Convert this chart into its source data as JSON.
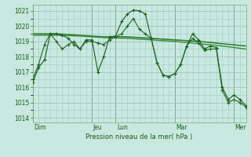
{
  "bg_color": "#c8e8e0",
  "grid_color": "#a0ccc4",
  "line_dark": "#1a5c1a",
  "line_med": "#2a7a2a",
  "ylabel": "Pression niveau de la mer( hPa )",
  "ylim": [
    1013.7,
    1021.4
  ],
  "yticks": [
    1014,
    1015,
    1016,
    1017,
    1018,
    1019,
    1020,
    1021
  ],
  "day_labels": [
    "Dim",
    "Jeu",
    "Lun",
    "Mar",
    "Mer"
  ],
  "day_positions": [
    0.0,
    0.278,
    0.389,
    0.667,
    0.944
  ],
  "series_jagged1": {
    "x": [
      0.0,
      0.028,
      0.056,
      0.083,
      0.111,
      0.139,
      0.167,
      0.194,
      0.222,
      0.25,
      0.278,
      0.306,
      0.333,
      0.361,
      0.389,
      0.417,
      0.444,
      0.472,
      0.5,
      0.528,
      0.556,
      0.583,
      0.611,
      0.639,
      0.667,
      0.694,
      0.722,
      0.75,
      0.778,
      0.806,
      0.833,
      0.861,
      0.889,
      0.917,
      0.944,
      0.972,
      1.0
    ],
    "y": [
      1016.3,
      1017.3,
      1017.8,
      1019.5,
      1019.5,
      1019.4,
      1019.2,
      1018.8,
      1018.5,
      1019.1,
      1019.1,
      1017.0,
      1018.0,
      1019.3,
      1019.35,
      1020.3,
      1020.8,
      1021.05,
      1021.0,
      1020.8,
      1019.2,
      1017.6,
      1016.8,
      1016.7,
      1016.9,
      1017.5,
      1018.7,
      1019.5,
      1019.1,
      1018.5,
      1018.7,
      1018.6,
      1016.0,
      1015.2,
      1015.5,
      1015.2,
      1014.8
    ]
  },
  "series_jagged2": {
    "x": [
      0.0,
      0.028,
      0.056,
      0.083,
      0.111,
      0.139,
      0.167,
      0.194,
      0.222,
      0.25,
      0.278,
      0.306,
      0.333,
      0.361,
      0.389,
      0.417,
      0.444,
      0.472,
      0.5,
      0.528,
      0.556,
      0.583,
      0.611,
      0.639,
      0.667,
      0.694,
      0.722,
      0.75,
      0.778,
      0.806,
      0.833,
      0.861,
      0.889,
      0.917,
      0.944,
      0.972,
      1.0
    ],
    "y": [
      1016.5,
      1017.5,
      1018.8,
      1019.5,
      1019.0,
      1018.5,
      1018.8,
      1019.0,
      1018.5,
      1019.0,
      1019.0,
      1018.9,
      1018.8,
      1019.1,
      1019.3,
      1019.5,
      1020.0,
      1020.5,
      1019.8,
      1019.5,
      1019.2,
      1017.6,
      1016.8,
      1016.7,
      1016.9,
      1017.5,
      1018.7,
      1019.2,
      1018.9,
      1018.4,
      1018.5,
      1018.5,
      1015.8,
      1015.0,
      1015.2,
      1015.0,
      1014.7
    ]
  },
  "series_smooth1": {
    "x": [
      0.0,
      0.111,
      0.222,
      0.333,
      0.444,
      0.556,
      0.667,
      0.778,
      0.889,
      1.0
    ],
    "y": [
      1019.5,
      1019.5,
      1019.4,
      1019.3,
      1019.3,
      1019.2,
      1019.1,
      1019.0,
      1018.85,
      1018.7
    ]
  },
  "series_smooth2": {
    "x": [
      0.0,
      0.111,
      0.222,
      0.333,
      0.444,
      0.556,
      0.667,
      0.778,
      0.889,
      1.0
    ],
    "y": [
      1019.4,
      1019.4,
      1019.35,
      1019.25,
      1019.2,
      1019.1,
      1019.0,
      1018.85,
      1018.7,
      1018.5
    ]
  }
}
